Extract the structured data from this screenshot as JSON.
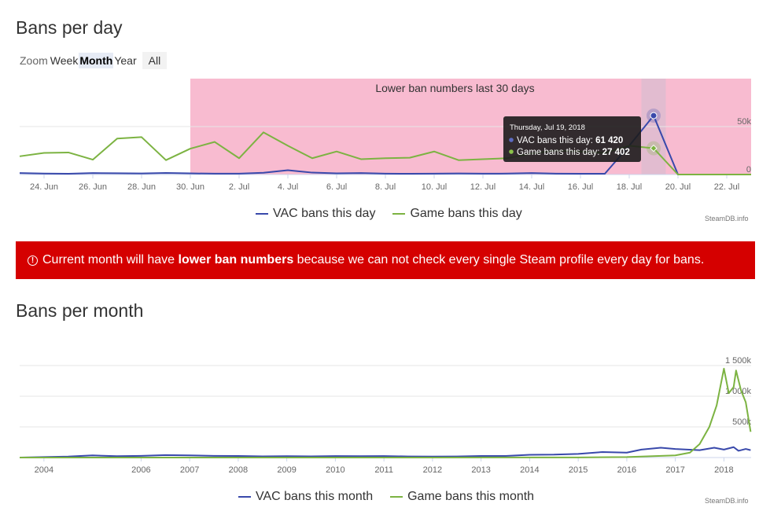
{
  "daily": {
    "title": "Bans per day",
    "zoom": {
      "label": "Zoom",
      "buttons": [
        "Week",
        "Month",
        "Year",
        "All"
      ],
      "active": "Month"
    },
    "band_label": "Lower ban numbers last 30 days",
    "tooltip": {
      "date": "Thursday, Jul 19, 2018",
      "vac_label": "VAC bans this day: ",
      "vac_value": "61 420",
      "game_label": "Game bans this day: ",
      "game_value": "27 402"
    },
    "credit": "SteamDB.info"
  },
  "alert": {
    "icon": "alert-circle-icon",
    "text_before": "Current month will have ",
    "text_bold": "lower ban numbers",
    "text_after": " because we can not check every single Steam profile every day for bans."
  },
  "monthly": {
    "title": "Bans per month",
    "credit": "SteamDB.info"
  },
  "chart_data": [
    {
      "type": "line",
      "x": [
        "23 Jun",
        "24 Jun",
        "25 Jun",
        "26 Jun",
        "27 Jun",
        "28 Jun",
        "29 Jun",
        "30 Jun",
        "1 Jul",
        "2 Jul",
        "3 Jul",
        "4 Jul",
        "5 Jul",
        "6 Jul",
        "7 Jul",
        "8 Jul",
        "9 Jul",
        "10 Jul",
        "11 Jul",
        "12 Jul",
        "13 Jul",
        "14 Jul",
        "15 Jul",
        "16 Jul",
        "17 Jul",
        "18 Jul",
        "19 Jul",
        "20 Jul",
        "21 Jul",
        "22 Jul",
        "23 Jul"
      ],
      "xticks": [
        "24. Jun",
        "26. Jun",
        "28. Jun",
        "30. Jun",
        "2. Jul",
        "4. Jul",
        "6. Jul",
        "8. Jul",
        "10. Jul",
        "12. Jul",
        "14. Jul",
        "16. Jul",
        "18. Jul",
        "20. Jul",
        "22. Jul"
      ],
      "series": [
        {
          "name": "VAC bans this day",
          "color": "#3949ab",
          "values": [
            1500,
            1000,
            800,
            1500,
            1300,
            1100,
            1600,
            1200,
            900,
            900,
            1800,
            4500,
            2000,
            1200,
            1500,
            900,
            800,
            900,
            1100,
            900,
            1000,
            1500,
            900,
            800,
            800,
            30000,
            61420,
            0,
            0,
            0,
            0
          ]
        },
        {
          "name": "Game bans this day",
          "color": "#7cb342",
          "values": [
            19000,
            22500,
            23000,
            15500,
            37500,
            39000,
            15000,
            27000,
            34000,
            17000,
            44000,
            30000,
            17000,
            24000,
            16000,
            17000,
            17500,
            24000,
            15000,
            16000,
            17000,
            22000,
            25000,
            24000,
            22500,
            30000,
            27402,
            0,
            0,
            0,
            0
          ]
        }
      ],
      "yticks": [
        "0",
        "50k"
      ],
      "ylim": [
        0,
        100000
      ],
      "plot_bands": [
        {
          "from": "30 Jun",
          "to": "23 Jul",
          "label": "Lower ban numbers last 30 days",
          "color": "#f8bbd0"
        }
      ],
      "highlight": {
        "x": "19 Jul",
        "color": "#e2bcd0"
      },
      "legend": "bottom-center",
      "grid": true
    },
    {
      "type": "line",
      "x_range": [
        "2003-07",
        "2018-07"
      ],
      "xticks": [
        "2004",
        "2006",
        "2007",
        "2008",
        "2009",
        "2010",
        "2011",
        "2012",
        "2013",
        "2014",
        "2015",
        "2016",
        "2017",
        "2018"
      ],
      "series": [
        {
          "name": "VAC bans this month",
          "color": "#3949ab",
          "points": [
            [
              2003.5,
              0
            ],
            [
              2004.0,
              8000
            ],
            [
              2004.5,
              16000
            ],
            [
              2005.0,
              35000
            ],
            [
              2005.5,
              22000
            ],
            [
              2006.0,
              28000
            ],
            [
              2006.5,
              40000
            ],
            [
              2007.0,
              35000
            ],
            [
              2007.5,
              28000
            ],
            [
              2008.0,
              25000
            ],
            [
              2008.5,
              20000
            ],
            [
              2009.0,
              22000
            ],
            [
              2009.5,
              20000
            ],
            [
              2010.0,
              24000
            ],
            [
              2010.5,
              22000
            ],
            [
              2011.0,
              24000
            ],
            [
              2011.5,
              18000
            ],
            [
              2012.0,
              16000
            ],
            [
              2012.5,
              18000
            ],
            [
              2013.0,
              25000
            ],
            [
              2013.5,
              26000
            ],
            [
              2014.0,
              45000
            ],
            [
              2014.5,
              48000
            ],
            [
              2015.0,
              60000
            ],
            [
              2015.5,
              90000
            ],
            [
              2016.0,
              80000
            ],
            [
              2016.3,
              130000
            ],
            [
              2016.7,
              160000
            ],
            [
              2017.0,
              140000
            ],
            [
              2017.5,
              120000
            ],
            [
              2017.8,
              160000
            ],
            [
              2018.0,
              130000
            ],
            [
              2018.2,
              170000
            ],
            [
              2018.3,
              110000
            ],
            [
              2018.45,
              140000
            ],
            [
              2018.55,
              120000
            ]
          ]
        },
        {
          "name": "Game bans this month",
          "color": "#7cb342",
          "points": [
            [
              2003.5,
              0
            ],
            [
              2012.0,
              0
            ],
            [
              2015.0,
              2000
            ],
            [
              2016.0,
              8000
            ],
            [
              2017.0,
              35000
            ],
            [
              2017.3,
              80000
            ],
            [
              2017.5,
              220000
            ],
            [
              2017.7,
              500000
            ],
            [
              2017.85,
              850000
            ],
            [
              2018.0,
              1450000
            ],
            [
              2018.1,
              1050000
            ],
            [
              2018.2,
              1150000
            ],
            [
              2018.25,
              1420000
            ],
            [
              2018.35,
              1100000
            ],
            [
              2018.45,
              900000
            ],
            [
              2018.55,
              420000
            ]
          ]
        }
      ],
      "yticks": [
        "500k",
        "1 000k",
        "1 500k"
      ],
      "ylim": [
        0,
        1500000
      ],
      "legend": "bottom-center",
      "grid": true
    }
  ]
}
